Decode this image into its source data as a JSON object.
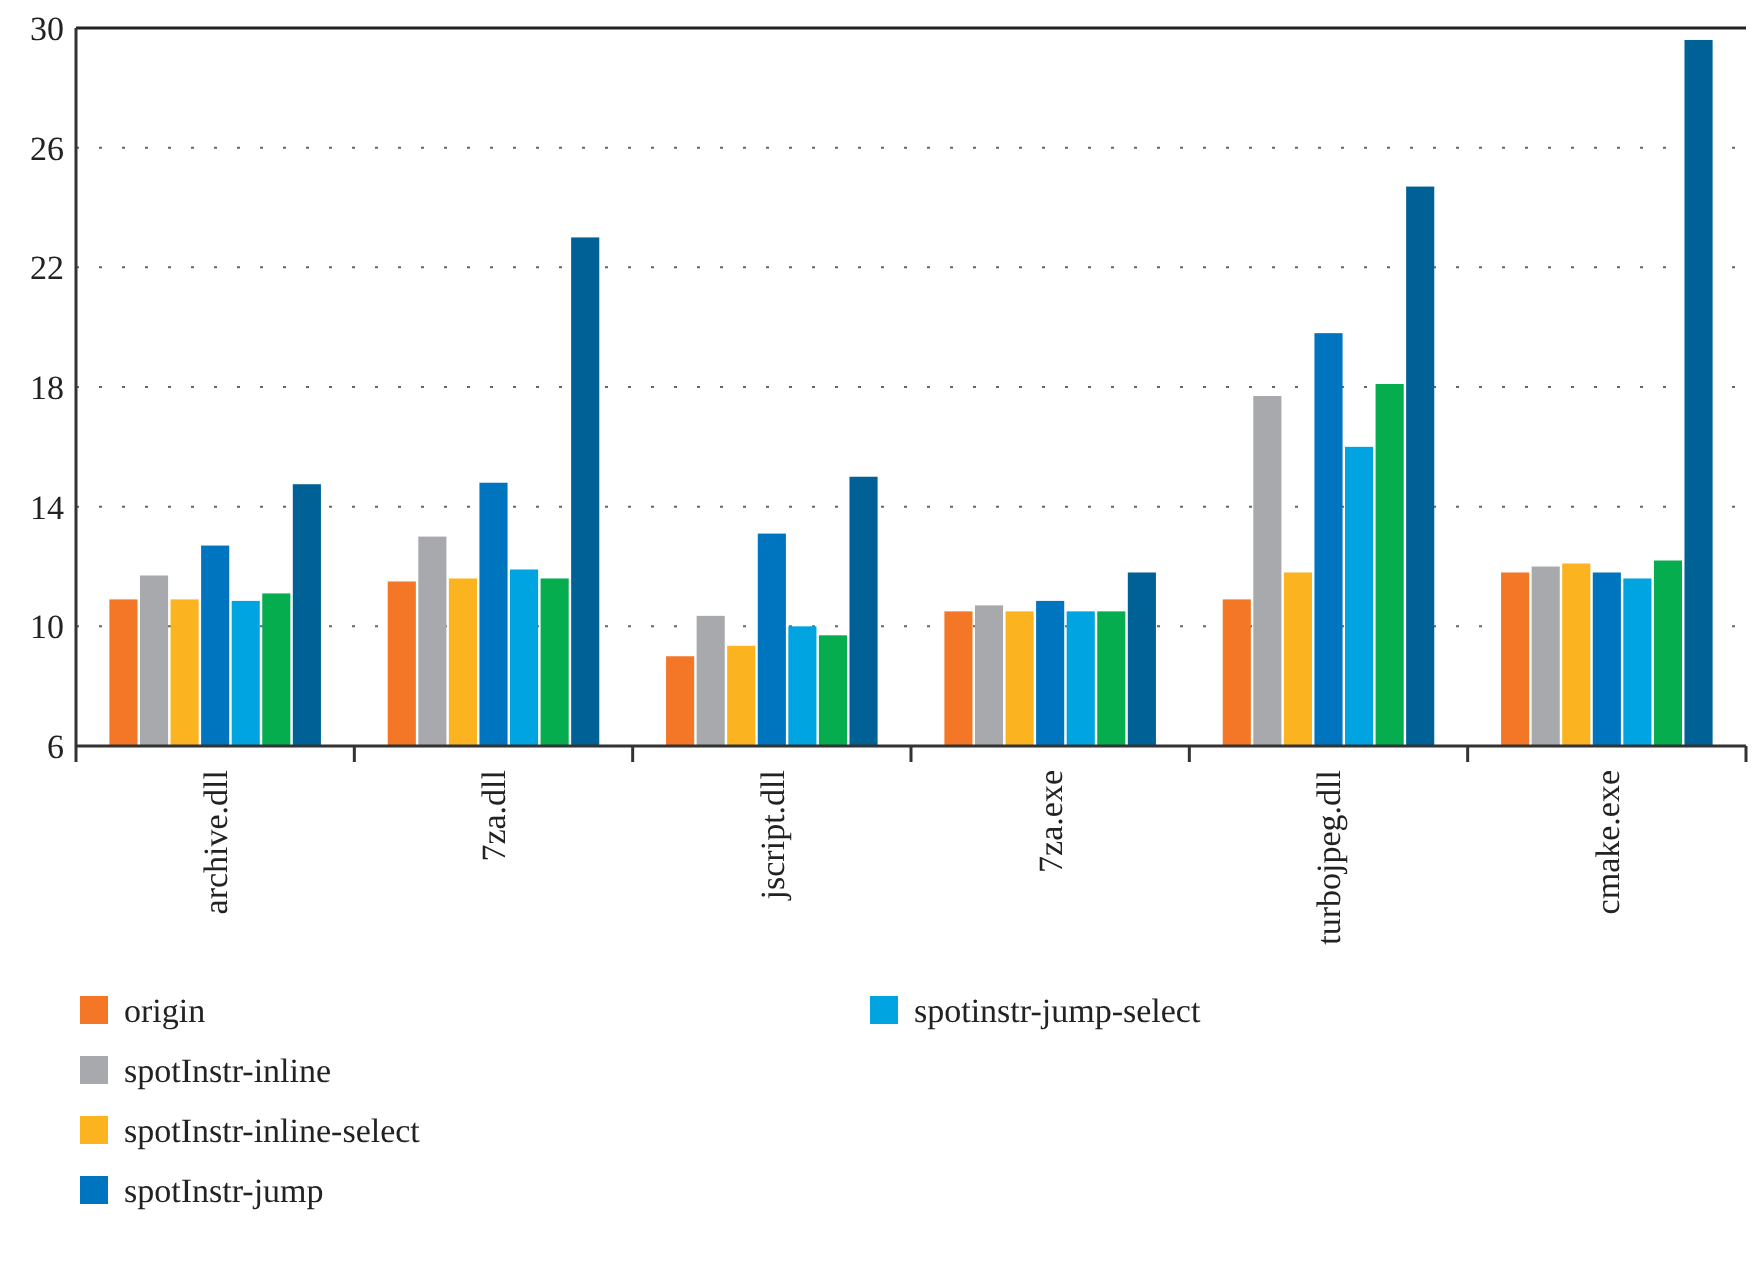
{
  "chart_data": {
    "type": "bar",
    "categories": [
      "archive.dll",
      "7za.dll",
      "jscript.dll",
      "7za.exe",
      "turbojpeg.dll",
      "cmake.exe"
    ],
    "series": [
      {
        "name": "origin",
        "color": "#f47727",
        "values": [
          10.9,
          11.5,
          9.0,
          10.5,
          10.9,
          11.8
        ]
      },
      {
        "name": "spotInstr-inline",
        "color": "#a8a9ad",
        "values": [
          11.7,
          13.0,
          10.35,
          10.7,
          17.7,
          12.0
        ]
      },
      {
        "name": "spotInstr-inline-select",
        "color": "#fbb41f",
        "values": [
          10.9,
          11.6,
          9.35,
          10.5,
          11.8,
          12.1
        ]
      },
      {
        "name": "spotInstr-jump",
        "color": "#0075bf",
        "values": [
          12.7,
          14.8,
          13.1,
          10.85,
          19.8,
          11.8
        ]
      },
      {
        "name": "spotinstr-jump-select",
        "color": "#00a4e0",
        "values": [
          10.85,
          11.9,
          10.0,
          10.5,
          16.0,
          11.6
        ]
      },
      {
        "color": "#06ad4f",
        "values": [
          11.1,
          11.6,
          9.7,
          10.5,
          18.1,
          12.2
        ]
      },
      {
        "color": "#006197",
        "values": [
          14.75,
          23.0,
          15.0,
          11.8,
          24.7,
          29.6
        ]
      }
    ],
    "ylim": [
      6,
      30
    ],
    "yticks": [
      6,
      10,
      14,
      18,
      22,
      26,
      30
    ],
    "grid": "y",
    "legend": "bottom"
  }
}
